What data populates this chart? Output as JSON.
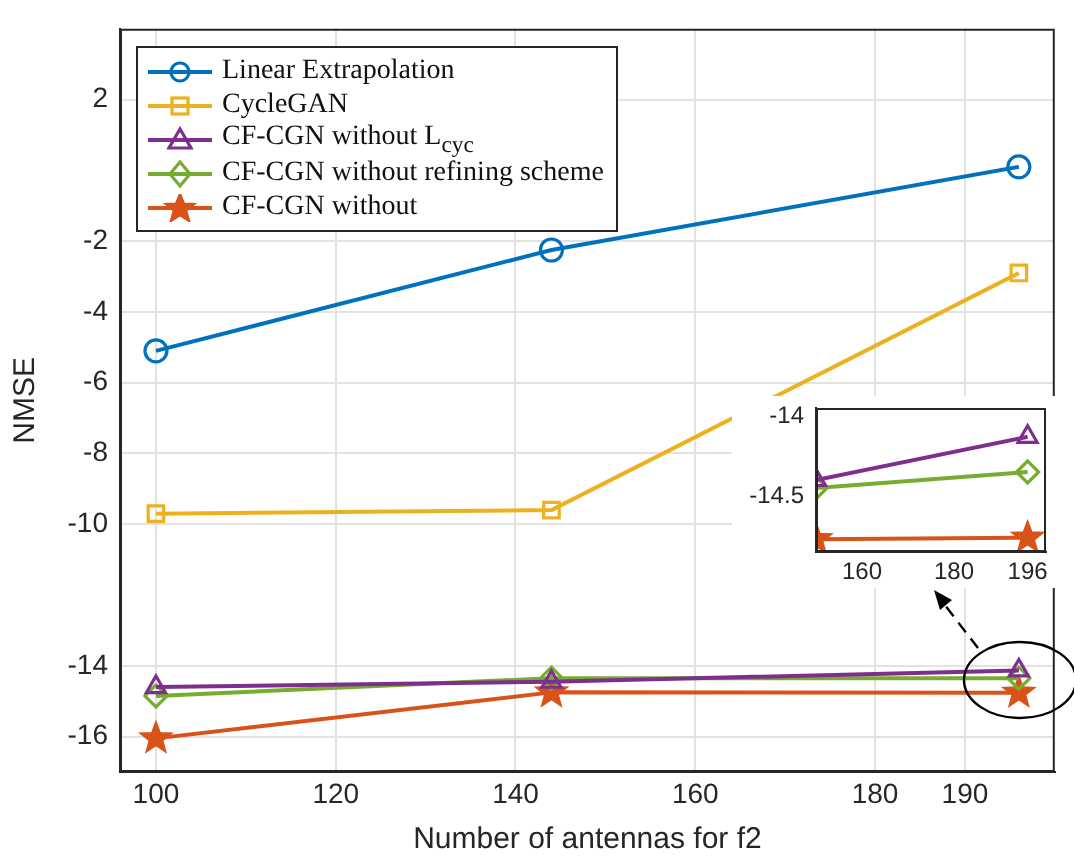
{
  "chart_data": [
    {
      "type": "line",
      "xlabel": "Number of antennas for f2",
      "ylabel": "NMSE",
      "x": [
        100,
        144,
        196
      ],
      "series": [
        {
          "name": "Linear Extrapolation",
          "color": "#0072bd",
          "marker": "circle",
          "values": [
            -5.1,
            -2.25,
            0.1
          ]
        },
        {
          "name": "CycleGAN",
          "color": "#edb120",
          "marker": "square",
          "values": [
            -9.7,
            -9.6,
            -2.9
          ]
        },
        {
          "name": "CF-CGN without L$_{cyc}$",
          "color": "#7e2f8e",
          "marker": "triangle",
          "values": [
            -14.6,
            -14.45,
            -14.13
          ]
        },
        {
          "name": "CF-CGN without refining scheme",
          "color": "#77ac30",
          "marker": "diamond",
          "values": [
            -14.85,
            -14.35,
            -14.35
          ]
        },
        {
          "name": "CF-CGN without",
          "color": "#d95319",
          "marker": "star",
          "values": [
            -16.05,
            -14.75,
            -14.76
          ]
        }
      ],
      "xlim": [
        96,
        200
      ],
      "ylim": [
        -17,
        4
      ],
      "xticks": [
        100,
        120,
        140,
        160,
        180,
        190
      ],
      "yticks": [
        -16,
        -14,
        -10,
        -8,
        -6,
        -4,
        -2,
        2
      ],
      "grid": true,
      "legend": "top left"
    },
    {
      "type": "line",
      "x": [
        150,
        196
      ],
      "series": [
        {
          "color": "#7e2f8e",
          "marker": "triangle",
          "values": [
            -14.4,
            -14.13
          ]
        },
        {
          "color": "#77ac30",
          "marker": "diamond",
          "values": [
            -14.45,
            -14.35
          ]
        },
        {
          "color": "#d95319",
          "marker": "star",
          "values": [
            -14.77,
            -14.76
          ]
        }
      ],
      "xlim": [
        150,
        200
      ],
      "ylim": [
        -14.85,
        -13.95
      ],
      "xticks": [
        160,
        180,
        196
      ],
      "yticks": [
        -14.5,
        -14
      ]
    }
  ]
}
